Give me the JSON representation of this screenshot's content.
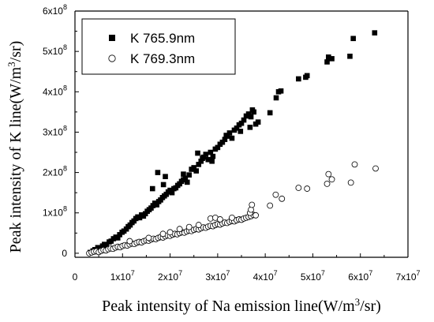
{
  "chart_data": {
    "type": "scatter",
    "title": "",
    "xlabel": {
      "main": "Peak intensity of Na emission line(W/m",
      "sup": "3",
      "tail": "/sr)"
    },
    "ylabel": {
      "main": "Peak intensity of K line(W/m",
      "sup": "3",
      "tail": "/sr)"
    },
    "xlim": [
      0,
      70000000
    ],
    "ylim": [
      -10000000,
      600000000
    ],
    "x_ticks": [
      {
        "value": 0,
        "label": "0",
        "sup": ""
      },
      {
        "value": 10000000,
        "label": "1x10",
        "sup": "7"
      },
      {
        "value": 20000000,
        "label": "2x10",
        "sup": "7"
      },
      {
        "value": 30000000,
        "label": "3x10",
        "sup": "7"
      },
      {
        "value": 40000000,
        "label": "4x10",
        "sup": "7"
      },
      {
        "value": 50000000,
        "label": "5x10",
        "sup": "7"
      },
      {
        "value": 60000000,
        "label": "6x10",
        "sup": "7"
      },
      {
        "value": 70000000,
        "label": "7x10",
        "sup": "7"
      }
    ],
    "y_ticks": [
      {
        "value": 0,
        "label": "0",
        "sup": ""
      },
      {
        "value": 100000000,
        "label": "1x10",
        "sup": "8"
      },
      {
        "value": 200000000,
        "label": "2x10",
        "sup": "8"
      },
      {
        "value": 300000000,
        "label": "3x10",
        "sup": "8"
      },
      {
        "value": 400000000,
        "label": "4x10",
        "sup": "8"
      },
      {
        "value": 500000000,
        "label": "5x10",
        "sup": "8"
      },
      {
        "value": 600000000,
        "label": "6x10",
        "sup": "8"
      }
    ],
    "legend_position": "top-left",
    "grid": false,
    "series": [
      {
        "name": "K 765.9nm",
        "marker": "filled-square",
        "color": "#000000",
        "points": [
          [
            3200000.0,
            2000000.0
          ],
          [
            3800000.0,
            6000000.0
          ],
          [
            4200000.0,
            9000000.0
          ],
          [
            4800000.0,
            14000000.0
          ],
          [
            5300000.0,
            12000000.0
          ],
          [
            5800000.0,
            18000000.0
          ],
          [
            6200000.0,
            22000000.0
          ],
          [
            6600000.0,
            20000000.0
          ],
          [
            7200000.0,
            28000000.0
          ],
          [
            7600000.0,
            30000000.0
          ],
          [
            8100000.0,
            36000000.0
          ],
          [
            8600000.0,
            40000000.0
          ],
          [
            9000000.0,
            38000000.0
          ],
          [
            9400000.0,
            46000000.0
          ],
          [
            9900000.0,
            52000000.0
          ],
          [
            10300000.0,
            55000000.0
          ],
          [
            10800000.0,
            60000000.0
          ],
          [
            11200000.0,
            66000000.0
          ],
          [
            11600000.0,
            70000000.0
          ],
          [
            12000000.0,
            76000000.0
          ],
          [
            12400000.0,
            80000000.0
          ],
          [
            12800000.0,
            86000000.0
          ],
          [
            13200000.0,
            90000000.0
          ],
          [
            13600000.0,
            88000000.0
          ],
          [
            14000000.0,
            95000000.0
          ],
          [
            14400000.0,
            92000000.0
          ],
          [
            14800000.0,
            98000000.0
          ],
          [
            15200000.0,
            104000000.0
          ],
          [
            15600000.0,
            108000000.0
          ],
          [
            16000000.0,
            112000000.0
          ],
          [
            16400000.0,
            118000000.0
          ],
          [
            16800000.0,
            124000000.0
          ],
          [
            17200000.0,
            120000000.0
          ],
          [
            17600000.0,
            128000000.0
          ],
          [
            18000000.0,
            132000000.0
          ],
          [
            18400000.0,
            138000000.0
          ],
          [
            18800000.0,
            142000000.0
          ],
          [
            19200000.0,
            146000000.0
          ],
          [
            19600000.0,
            152000000.0
          ],
          [
            20000000.0,
            156000000.0
          ],
          [
            20400000.0,
            150000000.0
          ],
          [
            20800000.0,
            160000000.0
          ],
          [
            21200000.0,
            162000000.0
          ],
          [
            21600000.0,
            168000000.0
          ],
          [
            22000000.0,
            172000000.0
          ],
          [
            22400000.0,
            178000000.0
          ],
          [
            22800000.0,
            182000000.0
          ],
          [
            23200000.0,
            186000000.0
          ],
          [
            23600000.0,
            176000000.0
          ],
          [
            24000000.0,
            194000000.0
          ],
          [
            24500000.0,
            208000000.0
          ],
          [
            25000000.0,
            212000000.0
          ],
          [
            25500000.0,
            204000000.0
          ],
          [
            26000000.0,
            220000000.0
          ],
          [
            26500000.0,
            228000000.0
          ],
          [
            27000000.0,
            238000000.0
          ],
          [
            27500000.0,
            245000000.0
          ],
          [
            28000000.0,
            232000000.0
          ],
          [
            28500000.0,
            250000000.0
          ],
          [
            29000000.0,
            240000000.0
          ],
          [
            29500000.0,
            258000000.0
          ],
          [
            30000000.0,
            262000000.0
          ],
          [
            30500000.0,
            270000000.0
          ],
          [
            31000000.0,
            275000000.0
          ],
          [
            31500000.0,
            282000000.0
          ],
          [
            32000000.0,
            290000000.0
          ],
          [
            32500000.0,
            298000000.0
          ],
          [
            33000000.0,
            285000000.0
          ],
          [
            33500000.0,
            305000000.0
          ],
          [
            34000000.0,
            310000000.0
          ],
          [
            34500000.0,
            318000000.0
          ],
          [
            35000000.0,
            322000000.0
          ],
          [
            35500000.0,
            330000000.0
          ],
          [
            36000000.0,
            340000000.0
          ],
          [
            36500000.0,
            345000000.0
          ],
          [
            37000000.0,
            338000000.0
          ],
          [
            37300000.0,
            355000000.0
          ],
          [
            37600000.0,
            350000000.0
          ],
          [
            38000000.0,
            320000000.0
          ],
          [
            38500000.0,
            325000000.0
          ],
          [
            41000000.0,
            348000000.0
          ],
          [
            42300000.0,
            385000000.0
          ],
          [
            42800000.0,
            400000000.0
          ],
          [
            43300000.0,
            402000000.0
          ],
          [
            47000000.0,
            432000000.0
          ],
          [
            48500000.0,
            436000000.0
          ],
          [
            48800000.0,
            440000000.0
          ],
          [
            53000000.0,
            474000000.0
          ],
          [
            53300000.0,
            486000000.0
          ],
          [
            54000000.0,
            482000000.0
          ],
          [
            57800000.0,
            488000000.0
          ],
          [
            58500000.0,
            532000000.0
          ],
          [
            63000000.0,
            546000000.0
          ],
          [
            17400000.0,
            200000000.0
          ],
          [
            19000000.0,
            190000000.0
          ],
          [
            25800000.0,
            248000000.0
          ],
          [
            28800000.0,
            228000000.0
          ],
          [
            31800000.0,
            292000000.0
          ],
          [
            34800000.0,
            302000000.0
          ],
          [
            36800000.0,
            312000000.0
          ],
          [
            22800000.0,
            196000000.0
          ],
          [
            26800000.0,
            235000000.0
          ],
          [
            16300000.0,
            160000000.0
          ],
          [
            18600000.0,
            170000000.0
          ]
        ]
      },
      {
        "name": "K 769.3nm",
        "marker": "open-circle",
        "color": "#000000",
        "points": [
          [
            3000000.0,
            0
          ],
          [
            3500000.0,
            2000000.0
          ],
          [
            4000000.0,
            4000000.0
          ],
          [
            4500000.0,
            5000000.0
          ],
          [
            5000000.0,
            3000000.0
          ],
          [
            5500000.0,
            6000000.0
          ],
          [
            6000000.0,
            8000000.0
          ],
          [
            6500000.0,
            7000000.0
          ],
          [
            7000000.0,
            10000000.0
          ],
          [
            7500000.0,
            12000000.0
          ],
          [
            8000000.0,
            11000000.0
          ],
          [
            8500000.0,
            14000000.0
          ],
          [
            9000000.0,
            16000000.0
          ],
          [
            9500000.0,
            15000000.0
          ],
          [
            10000000.0,
            18000000.0
          ],
          [
            10500000.0,
            20000000.0
          ],
          [
            11000000.0,
            19000000.0
          ],
          [
            11500000.0,
            22000000.0
          ],
          [
            12000000.0,
            24000000.0
          ],
          [
            12500000.0,
            23000000.0
          ],
          [
            13000000.0,
            26000000.0
          ],
          [
            13500000.0,
            28000000.0
          ],
          [
            14000000.0,
            27000000.0
          ],
          [
            14500000.0,
            30000000.0
          ],
          [
            15000000.0,
            32000000.0
          ],
          [
            15500000.0,
            31000000.0
          ],
          [
            16000000.0,
            34000000.0
          ],
          [
            16500000.0,
            36000000.0
          ],
          [
            17000000.0,
            35000000.0
          ],
          [
            17500000.0,
            38000000.0
          ],
          [
            18000000.0,
            40000000.0
          ],
          [
            18500000.0,
            39000000.0
          ],
          [
            19000000.0,
            42000000.0
          ],
          [
            19500000.0,
            44000000.0
          ],
          [
            20000000.0,
            43000000.0
          ],
          [
            20500000.0,
            46000000.0
          ],
          [
            21000000.0,
            48000000.0
          ],
          [
            21500000.0,
            47000000.0
          ],
          [
            22000000.0,
            50000000.0
          ],
          [
            22500000.0,
            52000000.0
          ],
          [
            23000000.0,
            51000000.0
          ],
          [
            23500000.0,
            54000000.0
          ],
          [
            24000000.0,
            56000000.0
          ],
          [
            24500000.0,
            55000000.0
          ],
          [
            25000000.0,
            58000000.0
          ],
          [
            25500000.0,
            60000000.0
          ],
          [
            26000000.0,
            59000000.0
          ],
          [
            26500000.0,
            62000000.0
          ],
          [
            27000000.0,
            64000000.0
          ],
          [
            27500000.0,
            63000000.0
          ],
          [
            28000000.0,
            66000000.0
          ],
          [
            28500000.0,
            68000000.0
          ],
          [
            29000000.0,
            67000000.0
          ],
          [
            29500000.0,
            70000000.0
          ],
          [
            30000000.0,
            72000000.0
          ],
          [
            30500000.0,
            71000000.0
          ],
          [
            31000000.0,
            74000000.0
          ],
          [
            31500000.0,
            76000000.0
          ],
          [
            32000000.0,
            75000000.0
          ],
          [
            32500000.0,
            78000000.0
          ],
          [
            33000000.0,
            80000000.0
          ],
          [
            33500000.0,
            79000000.0
          ],
          [
            34000000.0,
            82000000.0
          ],
          [
            34500000.0,
            84000000.0
          ],
          [
            35000000.0,
            83000000.0
          ],
          [
            35500000.0,
            86000000.0
          ],
          [
            36000000.0,
            88000000.0
          ],
          [
            36500000.0,
            90000000.0
          ],
          [
            37000000.0,
            92000000.0
          ],
          [
            37500000.0,
            95000000.0
          ],
          [
            38000000.0,
            94000000.0
          ],
          [
            11500000.0,
            30000000.0
          ],
          [
            15500000.0,
            38000000.0
          ],
          [
            20000000.0,
            52000000.0
          ],
          [
            22000000.0,
            60000000.0
          ],
          [
            24000000.0,
            65000000.0
          ],
          [
            28500000.0,
            86000000.0
          ],
          [
            29500000.0,
            88000000.0
          ],
          [
            30500000.0,
            84000000.0
          ],
          [
            36800000.0,
            100000000.0
          ],
          [
            37000000.0,
            108000000.0
          ],
          [
            37200000.0,
            120000000.0
          ],
          [
            41000000.0,
            118000000.0
          ],
          [
            42200000.0,
            145000000.0
          ],
          [
            43500000.0,
            135000000.0
          ],
          [
            47000000.0,
            162000000.0
          ],
          [
            48800000.0,
            160000000.0
          ],
          [
            53000000.0,
            172000000.0
          ],
          [
            53300000.0,
            196000000.0
          ],
          [
            54000000.0,
            183000000.0
          ],
          [
            58000000.0,
            175000000.0
          ],
          [
            58800000.0,
            220000000.0
          ],
          [
            63200000.0,
            210000000.0
          ],
          [
            26000000.0,
            70000000.0
          ],
          [
            33000000.0,
            88000000.0
          ],
          [
            18500000.0,
            48000000.0
          ]
        ]
      }
    ]
  }
}
